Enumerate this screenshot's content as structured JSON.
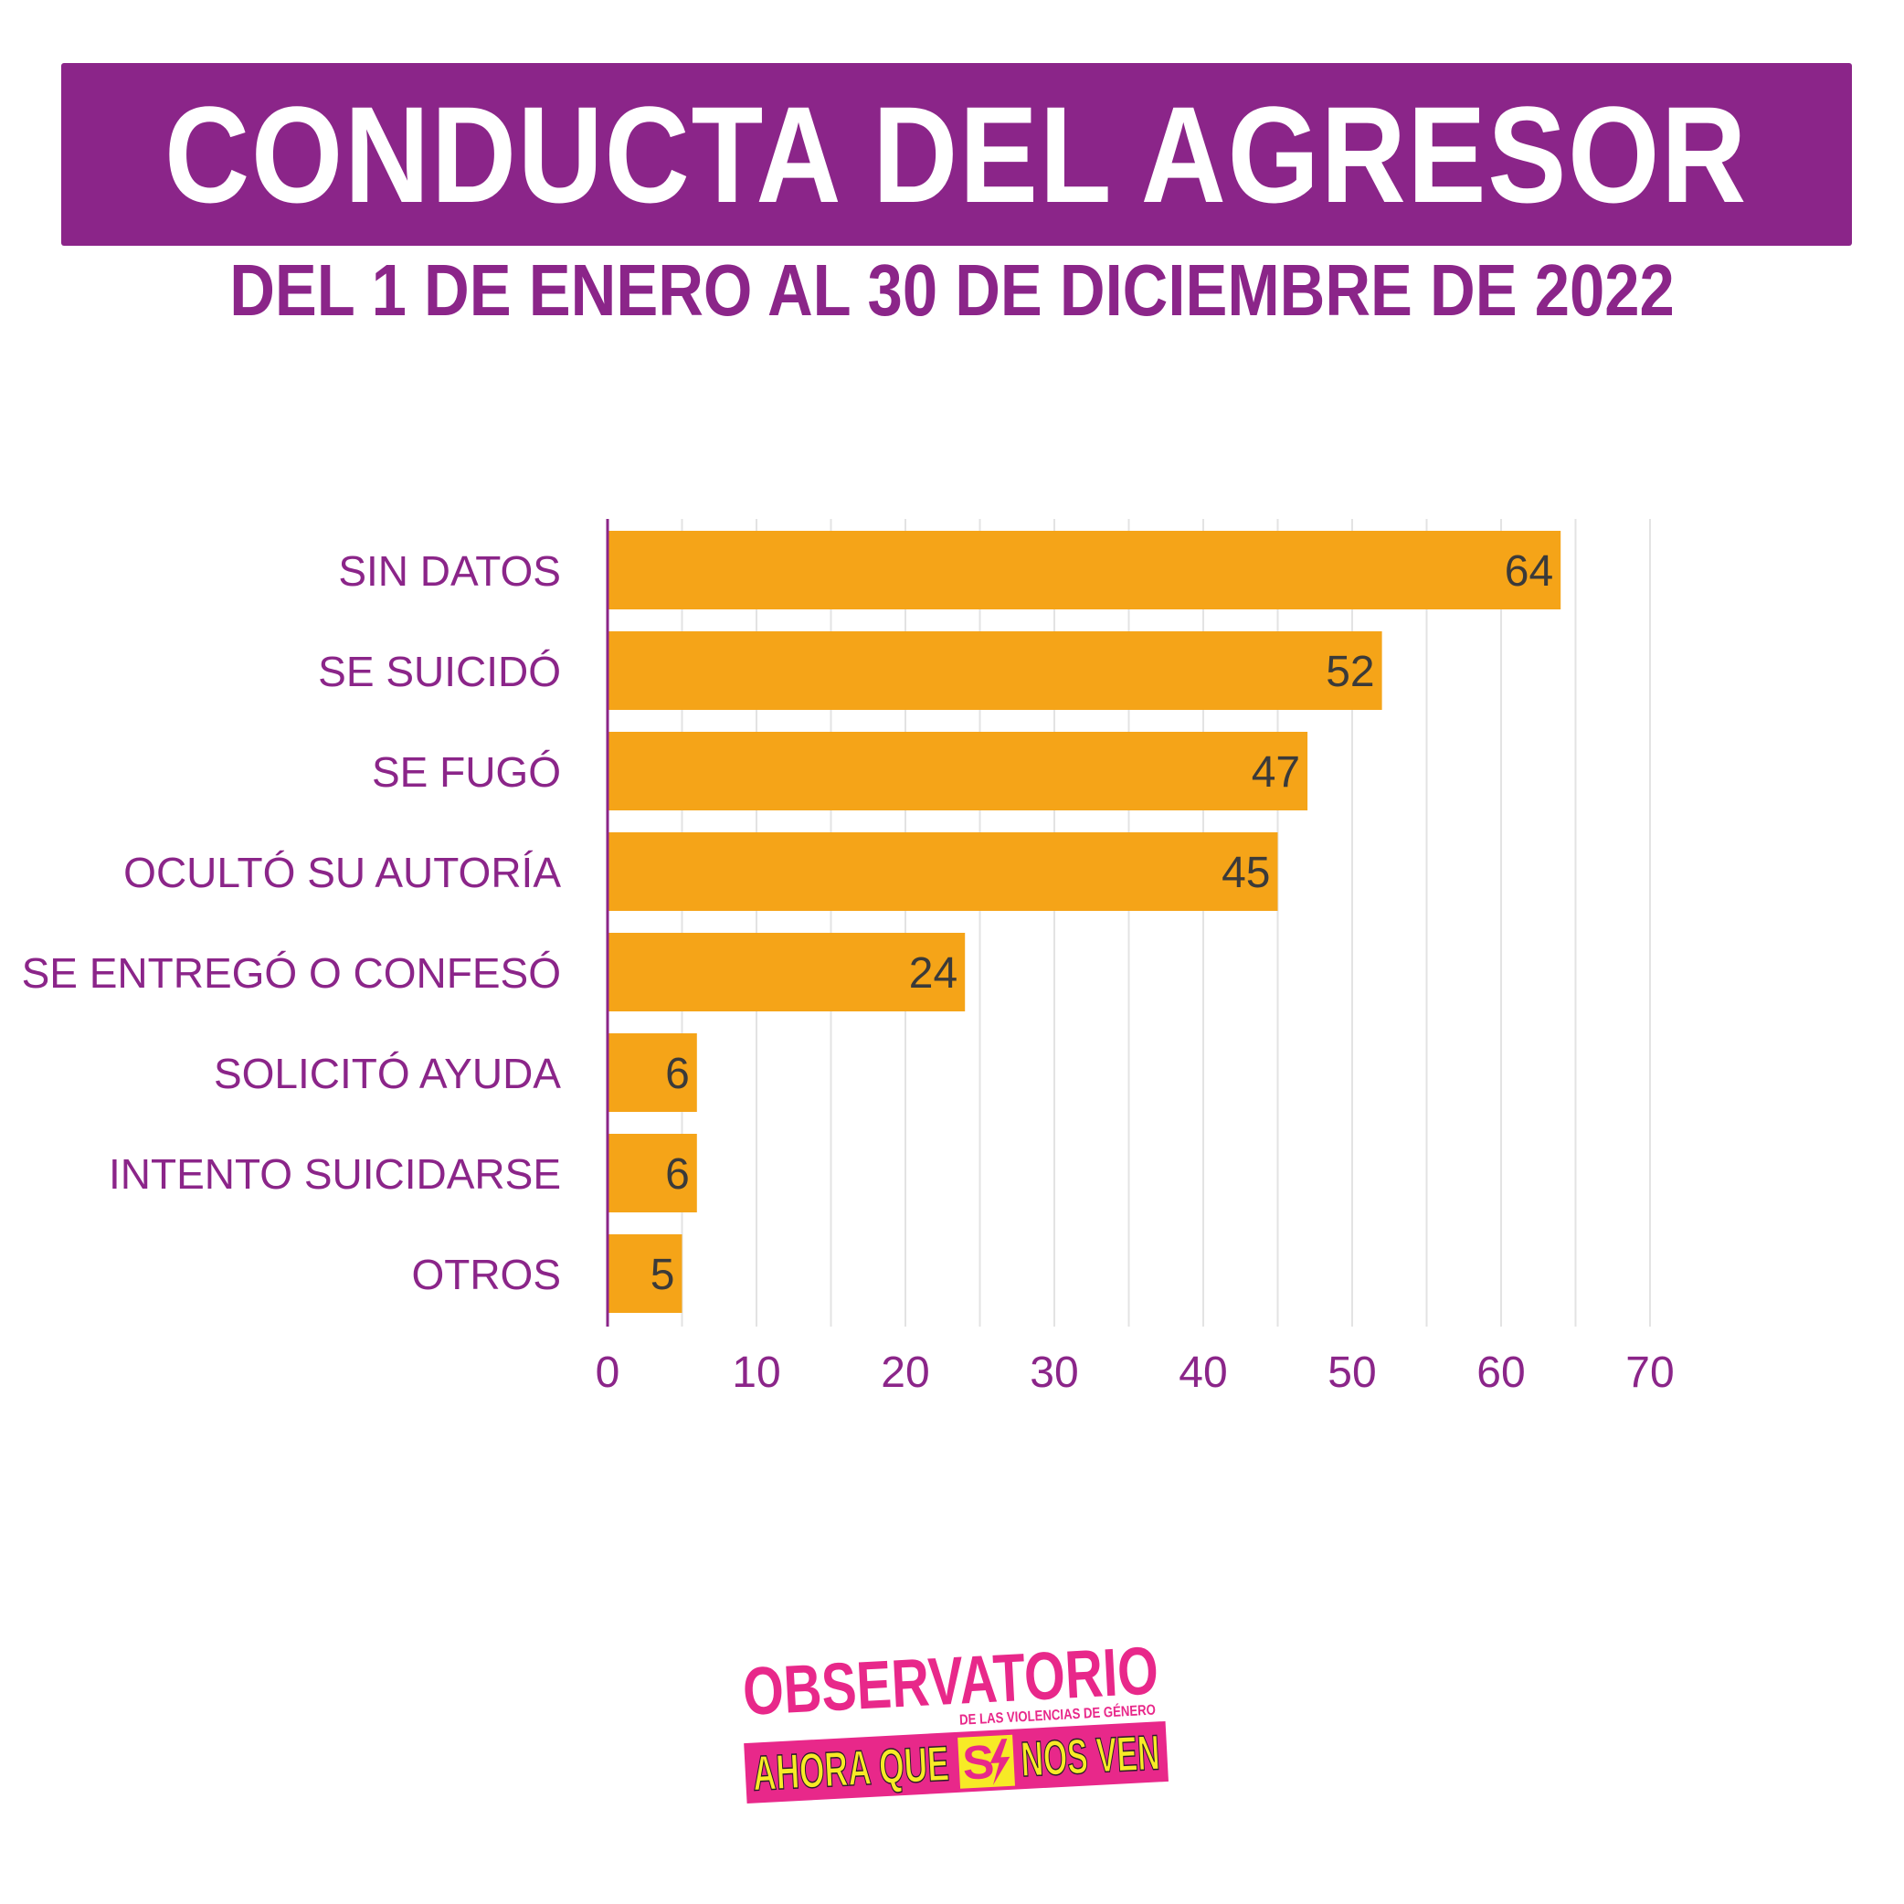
{
  "title": "CONDUCTA DEL AGRESOR",
  "subtitle": "DEL 1 DE ENERO AL 30 DE DICIEMBRE DE 2022",
  "colors": {
    "accent": "#8b2589",
    "bar": "#f5a418",
    "grid": "#e3e3e3",
    "value_label": "#3a3a3a",
    "logo_pink": "#e8288a",
    "logo_yellow": "#f7ea26"
  },
  "chart_data": {
    "type": "bar",
    "orientation": "horizontal",
    "categories": [
      "SIN DATOS",
      "SE SUICIDÓ",
      "SE FUGÓ",
      "OCULTÓ SU AUTORÍA",
      "SE ENTREGÓ O CONFESÓ",
      "SOLICITÓ AYUDA",
      "INTENTO SUICIDARSE",
      "OTROS"
    ],
    "values": [
      64,
      52,
      47,
      45,
      24,
      6,
      6,
      5
    ],
    "xlim": [
      0,
      70
    ],
    "xticks": [
      "0",
      "10",
      "20",
      "30",
      "40",
      "50",
      "60",
      "70"
    ],
    "grid": true,
    "data_labels": true
  },
  "logo": {
    "line1": "OBSERVATORIO",
    "line2": "DE LAS VIOLENCIAS DE GÉNERO",
    "line3a": "AHORA QUE",
    "line3b": "NOS VEN"
  }
}
